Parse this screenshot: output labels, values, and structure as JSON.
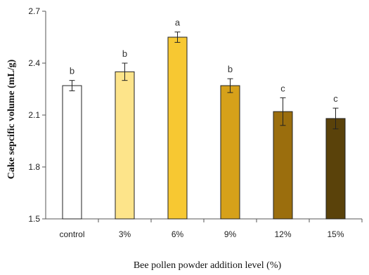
{
  "chart_data": {
    "type": "bar",
    "xlabel": "Bee pollen powder addition level (%)",
    "ylabel": "Cake sepcific volume (mL/g)",
    "ylim": [
      1.5,
      2.7
    ],
    "yticks": [
      "1.5",
      "1.8",
      "2.1",
      "2.4",
      "2.7"
    ],
    "categories": [
      "control",
      "3%",
      "6%",
      "9%",
      "12%",
      "15%"
    ],
    "values": [
      2.27,
      2.35,
      2.55,
      2.27,
      2.12,
      2.08
    ],
    "errors": [
      0.03,
      0.05,
      0.03,
      0.04,
      0.08,
      0.06
    ],
    "significance": [
      "b",
      "b",
      "a",
      "b",
      "c",
      "c"
    ],
    "colors": [
      "#ffffff",
      "#fde48a",
      "#f7c832",
      "#d6a11a",
      "#9b6e0d",
      "#5a420a"
    ],
    "grid": false,
    "legend": "none"
  }
}
